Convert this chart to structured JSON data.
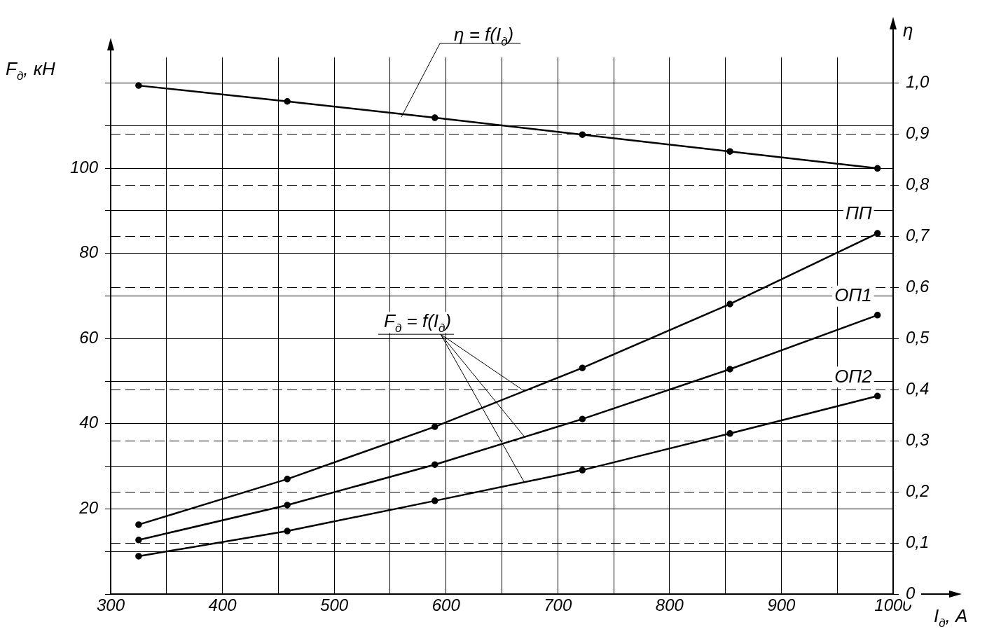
{
  "chart_data": {
    "type": "line",
    "xlabel": "I$_{д}$, А",
    "ylabel": "F$_{д}$, кН",
    "y2label": "η",
    "x": [
      325,
      458,
      590,
      722,
      854,
      986
    ],
    "series": [
      {
        "color": "#000000",
        "axis": "y2",
        "values": [
          0.995,
          0.964,
          0.932,
          0.899,
          0.866,
          0.833
        ]
      },
      {
        "name": "ПП",
        "color": "#000000",
        "values": [
          16.3,
          27.0,
          39.3,
          53.1,
          68.1,
          84.7
        ]
      },
      {
        "name": "ОП1",
        "color": "#000000",
        "values": [
          12.7,
          20.9,
          30.4,
          41.1,
          52.8,
          65.5
        ]
      },
      {
        "name": "ОП2",
        "color": "#000000",
        "values": [
          8.9,
          14.8,
          21.9,
          29.1,
          37.7,
          46.5
        ]
      }
    ],
    "annotations": [
      {
        "text": "η = f(I$_{д}$)",
        "x": 560,
        "y": 112
      },
      {
        "text": "F$_{д}$ = f(I$_{д}$)",
        "x": 670,
        "y": 37
      }
    ],
    "xlim": [
      300,
      1000
    ],
    "xticks": [
      300,
      {
        "value": 350,
        "label": null
      },
      400,
      {
        "value": 450,
        "label": null
      },
      500,
      {
        "value": 550,
        "label": null
      },
      600,
      {
        "value": 650,
        "label": null
      },
      700,
      {
        "value": 750,
        "label": null
      },
      800,
      {
        "value": 850,
        "label": null
      },
      900,
      {
        "value": 950,
        "label": null
      },
      1000
    ],
    "ylim": [
      0,
      126
    ],
    "yticks": [
      {
        "value": 0,
        "label": null
      },
      {
        "value": 10,
        "label": null
      },
      20,
      {
        "value": 30,
        "label": null
      },
      40,
      {
        "value": 50,
        "label": null
      },
      60,
      {
        "value": 70,
        "label": null
      },
      80,
      {
        "value": 90,
        "label": null
      },
      100,
      {
        "value": 110,
        "label": null
      },
      {
        "value": 120,
        "label": null
      }
    ],
    "y2lim": [
      0,
      1.05
    ],
    "y2ticks": [
      0,
      {
        "value": 0.1,
        "label": "0,1"
      },
      {
        "value": 0.2,
        "label": "0,2"
      },
      {
        "value": 0.3,
        "label": "0,3"
      },
      {
        "value": 0.4,
        "label": "0,4"
      },
      {
        "value": 0.5,
        "label": "0,5"
      },
      {
        "value": 0.6,
        "label": "0,6"
      },
      {
        "value": 0.7,
        "label": "0,7"
      },
      {
        "value": 0.8,
        "label": "0,8"
      },
      {
        "value": 0.9,
        "label": "0,9"
      },
      {
        "value": 1.0,
        "label": "1,0"
      }
    ],
    "grid": true,
    "legend": false,
    "marker": "circle",
    "line_style": "solid"
  }
}
